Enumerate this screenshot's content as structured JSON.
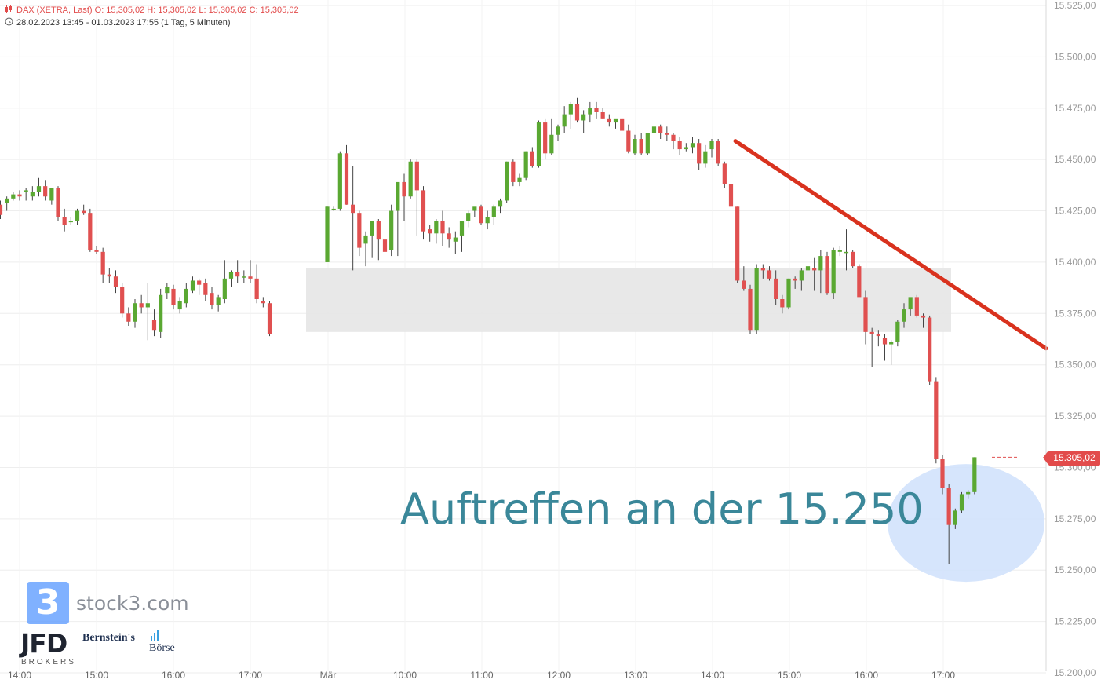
{
  "header": {
    "line1": "DAX (XETRA, Last)  O: 15,305,02  H: 15,305,02  L: 15,305,02  C: 15,305,02",
    "line2": "28.02.2023 13:45 - 01.03.2023 17:55   (1 Tag, 5 Minuten)"
  },
  "logos": {
    "stock3_digit": "3",
    "stock3_text": "stock3.com",
    "jfd": "JFD",
    "jfd_sub": "BROKERS",
    "bernstein": "Bernstein's",
    "boerse": "Börse"
  },
  "annotation": {
    "text": "Auftreffen an der 15.250"
  },
  "last_price": "15.305,02",
  "colors": {
    "up": "#5aa832",
    "down": "#e05050",
    "trendline": "#d9321e",
    "zone": "#e6e6e6",
    "highlight": "#cfe0fb",
    "annotation": "#3a8799"
  },
  "chart_data": {
    "type": "candlestick",
    "instrument": "DAX (XETRA, Last)",
    "y_ticks": [
      "15.525,00",
      "15.500,00",
      "15.475,00",
      "15.450,00",
      "15.425,00",
      "15.400,00",
      "15.375,00",
      "15.350,00",
      "15.325,00",
      "15.300,00",
      "15.275,00",
      "15.250,00",
      "15.225,00",
      "15.200,00"
    ],
    "y_tick_values": [
      15525,
      15500,
      15475,
      15450,
      15425,
      15400,
      15375,
      15350,
      15325,
      15300,
      15275,
      15250,
      15225,
      15200
    ],
    "ylim": [
      15199,
      15526
    ],
    "x_ticks": [
      "14:00",
      "15:00",
      "16:00",
      "17:00",
      "Mär",
      "10:00",
      "11:00",
      "12:00",
      "13:00",
      "14:00",
      "15:00",
      "16:00",
      "17:00"
    ],
    "grid": true,
    "day1_ohlc": [
      [
        15428,
        15430,
        15421,
        15423
      ],
      [
        15429,
        15432,
        15425,
        15431
      ],
      [
        15431,
        15434,
        15430,
        15433
      ],
      [
        15433,
        15435,
        15430,
        15432
      ],
      [
        15434,
        15436,
        15430,
        15435
      ],
      [
        15432,
        15437,
        15430,
        15434
      ],
      [
        15434,
        15441,
        15432,
        15437
      ],
      [
        15437,
        15440,
        15430,
        15432
      ],
      [
        15430,
        15436,
        15428,
        15436
      ],
      [
        15436,
        15437,
        15420,
        15422
      ],
      [
        15422,
        15426,
        15415,
        15418
      ],
      [
        15420,
        15422,
        15418,
        15420
      ],
      [
        15420,
        15426,
        15418,
        15425
      ],
      [
        15425,
        15428,
        15423,
        15424
      ],
      [
        15424,
        15426,
        15405,
        15406
      ],
      [
        15406,
        15408,
        15404,
        15405
      ],
      [
        15405,
        15407,
        15390,
        15394
      ],
      [
        15394,
        15397,
        15390,
        15393
      ],
      [
        15393,
        15396,
        15385,
        15388
      ],
      [
        15388,
        15390,
        15373,
        15375
      ],
      [
        15375,
        15378,
        15369,
        15371
      ],
      [
        15371,
        15382,
        15368,
        15380
      ],
      [
        15380,
        15384,
        15375,
        15378
      ],
      [
        15378,
        15390,
        15362,
        15380
      ],
      [
        15372,
        15377,
        15364,
        15367
      ],
      [
        15366,
        15387,
        15363,
        15384
      ],
      [
        15385,
        15390,
        15382,
        15388
      ],
      [
        15387,
        15389,
        15377,
        15379
      ],
      [
        15377,
        15383,
        15375,
        15381
      ],
      [
        15380,
        15390,
        15378,
        15387
      ],
      [
        15386,
        15393,
        15385,
        15391
      ],
      [
        15391,
        15392,
        15384,
        15389
      ],
      [
        15390,
        15392,
        15381,
        15384
      ],
      [
        15385,
        15388,
        15377,
        15379
      ],
      [
        15379,
        15384,
        15376,
        15383
      ],
      [
        15382,
        15401,
        15380,
        15392
      ],
      [
        15392,
        15396,
        15388,
        15395
      ],
      [
        15395,
        15401,
        15390,
        15393
      ],
      [
        15393,
        15396,
        15390,
        15393
      ],
      [
        15393,
        15401,
        15390,
        15392
      ],
      [
        15392,
        15399,
        15380,
        15382
      ],
      [
        15381,
        15383,
        15378,
        15380
      ],
      [
        15380,
        15381,
        15364,
        15365
      ]
    ],
    "day2_ohlc": [
      [
        15400,
        15427,
        15400,
        15427
      ],
      [
        15426,
        15427,
        15425,
        15426
      ],
      [
        15426,
        15454,
        15425,
        15453
      ],
      [
        15453,
        15457,
        15428,
        15428
      ],
      [
        15428,
        15447,
        15396,
        15424
      ],
      [
        15424,
        15425,
        15403,
        15407
      ],
      [
        15409,
        15415,
        15398,
        15413
      ],
      [
        15413,
        15416,
        15402,
        15420
      ],
      [
        15420,
        15421,
        15401,
        15411
      ],
      [
        15411,
        15416,
        15400,
        15405
      ],
      [
        15406,
        15428,
        15403,
        15425
      ],
      [
        15425,
        15430,
        15403,
        15439
      ],
      [
        15439,
        15443,
        15420,
        15432
      ],
      [
        15432,
        15450,
        15431,
        15449
      ],
      [
        15449,
        15450,
        15413,
        15435
      ],
      [
        15435,
        15437,
        15411,
        15415
      ],
      [
        15416,
        15418,
        15410,
        15414
      ],
      [
        15414,
        15421,
        15409,
        15420
      ],
      [
        15420,
        15425,
        15408,
        15414
      ],
      [
        15414,
        15417,
        15407,
        15411
      ],
      [
        15410,
        15415,
        15404,
        15412
      ],
      [
        15413,
        15415,
        15405,
        15420
      ],
      [
        15420,
        15425,
        15417,
        15424
      ],
      [
        15425,
        15426,
        15422,
        15427
      ],
      [
        15427,
        15428,
        15418,
        15419
      ],
      [
        15419,
        15425,
        15416,
        15422
      ],
      [
        15422,
        15428,
        15418,
        15427
      ],
      [
        15427,
        15431,
        15424,
        15430
      ],
      [
        15430,
        15449,
        15429,
        15449
      ],
      [
        15449,
        15450,
        15437,
        15439
      ],
      [
        15439,
        15443,
        15437,
        15441
      ],
      [
        15441,
        15454,
        15440,
        15454
      ],
      [
        15454,
        15456,
        15446,
        15447
      ],
      [
        15447,
        15469,
        15446,
        15468
      ],
      [
        15468,
        15470,
        15450,
        15453
      ],
      [
        15453,
        15470,
        15452,
        15462
      ],
      [
        15462,
        15467,
        15459,
        15466
      ],
      [
        15466,
        15476,
        15463,
        15472
      ],
      [
        15472,
        15478,
        15465,
        15477
      ],
      [
        15477,
        15480,
        15468,
        15469
      ],
      [
        15469,
        15474,
        15463,
        15472
      ],
      [
        15472,
        15478,
        15468,
        15475
      ],
      [
        15475,
        15478,
        15470,
        15473
      ],
      [
        15473,
        15475,
        15470,
        15470
      ],
      [
        15470,
        15472,
        15466,
        15468
      ],
      [
        15468,
        15469,
        15465,
        15470
      ],
      [
        15470,
        15470,
        15464,
        15464
      ],
      [
        15464,
        15467,
        15453,
        15454
      ],
      [
        15453,
        15462,
        15452,
        15460
      ],
      [
        15460,
        15463,
        15452,
        15453
      ],
      [
        15453,
        15462,
        15452,
        15463
      ],
      [
        15463,
        15467,
        15462,
        15466
      ],
      [
        15466,
        15467,
        15460,
        15463
      ],
      [
        15463,
        15466,
        15459,
        15462
      ],
      [
        15462,
        15463,
        15455,
        15459
      ],
      [
        15459,
        15461,
        15452,
        15455
      ],
      [
        15455,
        15458,
        15454,
        15456
      ],
      [
        15456,
        15461,
        15453,
        15458
      ],
      [
        15458,
        15460,
        15445,
        15448
      ],
      [
        15448,
        15457,
        15446,
        15454
      ],
      [
        15455,
        15460,
        15451,
        15459
      ],
      [
        15459,
        15460,
        15447,
        15448
      ],
      [
        15448,
        15449,
        15436,
        15438
      ],
      [
        15438,
        15440,
        15425,
        15427
      ],
      [
        15427,
        15427,
        15390,
        15391
      ],
      [
        15391,
        15398,
        15386,
        15387
      ],
      [
        15387,
        15389,
        15365,
        15367
      ],
      [
        15367,
        15399,
        15365,
        15397
      ],
      [
        15397,
        15399,
        15392,
        15396
      ],
      [
        15396,
        15398,
        15391,
        15392
      ],
      [
        15392,
        15396,
        15379,
        15382
      ],
      [
        15382,
        15384,
        15375,
        15378
      ],
      [
        15378,
        15392,
        15377,
        15392
      ],
      [
        15392,
        15393,
        15387,
        15391
      ],
      [
        15391,
        15397,
        15386,
        15396
      ],
      [
        15396,
        15401,
        15389,
        15398
      ],
      [
        15397,
        15402,
        15386,
        15396
      ],
      [
        15396,
        15406,
        15385,
        15403
      ],
      [
        15403,
        15405,
        15384,
        15385
      ],
      [
        15385,
        15407,
        15382,
        15406
      ],
      [
        15405,
        15408,
        15403,
        15406
      ],
      [
        15405,
        15416,
        15396,
        15405
      ],
      [
        15405,
        15406,
        15397,
        15398
      ],
      [
        15398,
        15399,
        15384,
        15383
      ],
      [
        15383,
        15386,
        15360,
        15366
      ],
      [
        15366,
        15368,
        15349,
        15365
      ],
      [
        15365,
        15367,
        15359,
        15364
      ],
      [
        15363,
        15365,
        15352,
        15360
      ],
      [
        15360,
        15362,
        15350,
        15361
      ],
      [
        15361,
        15372,
        15359,
        15371
      ],
      [
        15371,
        15380,
        15368,
        15377
      ],
      [
        15377,
        15381,
        15374,
        15383
      ],
      [
        15383,
        15384,
        15373,
        15374
      ],
      [
        15374,
        15375,
        15368,
        15373
      ],
      [
        15373,
        15374,
        15340,
        15342
      ],
      [
        15342,
        15344,
        15302,
        15304
      ],
      [
        15304,
        15306,
        15287,
        15290
      ],
      [
        15290,
        15292,
        15253,
        15272
      ],
      [
        15272,
        15280,
        15270,
        15279
      ],
      [
        15279,
        15288,
        15278,
        15287
      ],
      [
        15287,
        15289,
        15285,
        15288
      ],
      [
        15288,
        15305,
        15287,
        15305
      ]
    ],
    "support_zone": [
      15366,
      15397
    ],
    "trendline": [
      [
        15459,
        "14:18"
      ],
      [
        15358,
        "end"
      ]
    ],
    "last_price": 15305.02
  }
}
